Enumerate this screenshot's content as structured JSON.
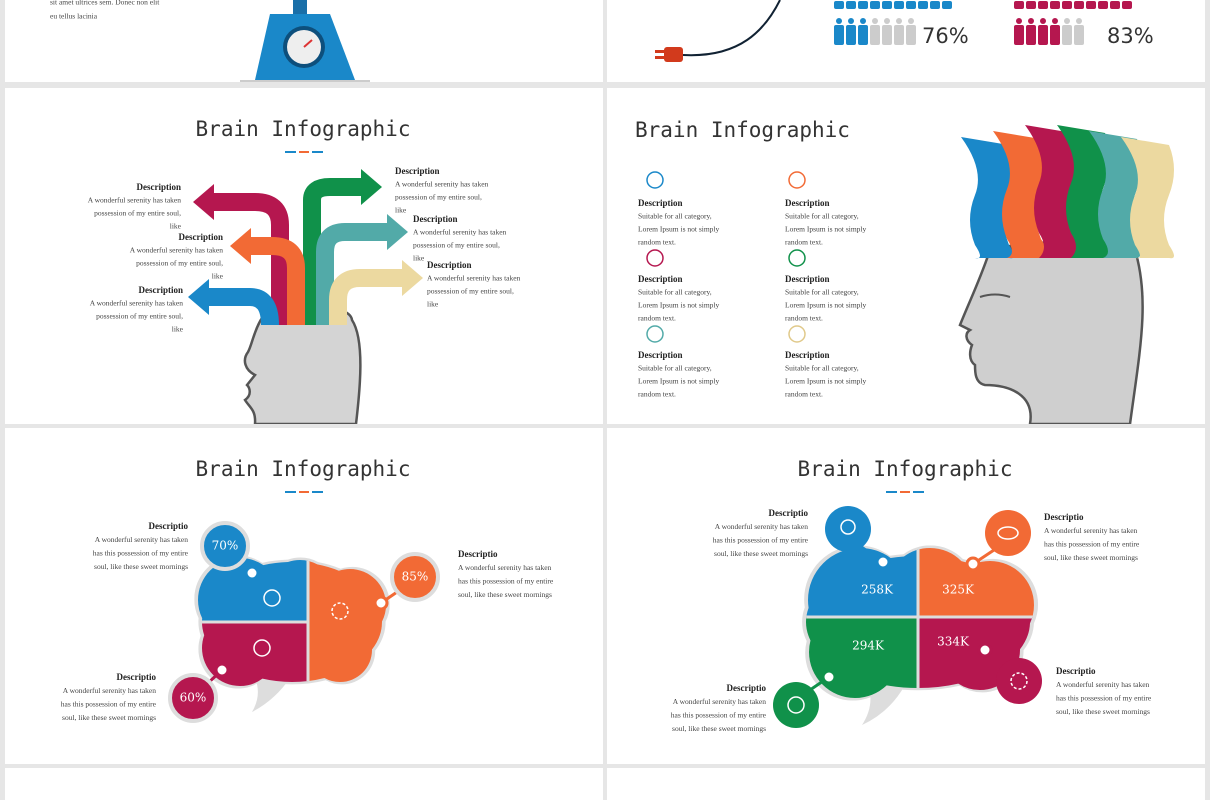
{
  "slides": [
    {
      "text": [
        "sit amet ultrices sem. Donec non elit",
        "eu tellus lacinia"
      ]
    },
    {
      "stats": [
        "76%",
        "83%"
      ]
    },
    {
      "title": "Brain Infographic",
      "items": [
        {
          "heading": "Description",
          "body": [
            "A wonderful serenity has taken",
            "possession of my entire soul,",
            "like"
          ]
        },
        {
          "heading": "Description",
          "body": [
            "A wonderful serenity has taken",
            "possession of my entire soul,",
            "like"
          ]
        },
        {
          "heading": "Description",
          "body": [
            "A wonderful serenity has taken",
            "possession of my entire soul,",
            "like"
          ]
        },
        {
          "heading": "Description",
          "body": [
            "A wonderful serenity has taken",
            "possession of my entire soul,",
            "like"
          ]
        },
        {
          "heading": "Description",
          "body": [
            "A wonderful serenity has taken",
            "possession of my entire soul,",
            "like"
          ]
        },
        {
          "heading": "Description",
          "body": [
            "A wonderful serenity has taken",
            "possession of my entire soul,",
            "like"
          ]
        }
      ]
    },
    {
      "title": "Brain Infographic",
      "items": [
        {
          "heading": "Description",
          "body": [
            "Suitable for all category,",
            "Lorem Ipsum is not simply",
            "random text."
          ]
        },
        {
          "heading": "Description",
          "body": [
            "Suitable for all category,",
            "Lorem Ipsum is not simply",
            "random text."
          ]
        },
        {
          "heading": "Description",
          "body": [
            "Suitable for all category,",
            "Lorem Ipsum is not simply",
            "random text."
          ]
        },
        {
          "heading": "Description",
          "body": [
            "Suitable for all category,",
            "Lorem Ipsum is not simply",
            "random text."
          ]
        },
        {
          "heading": "Description",
          "body": [
            "Suitable for all category,",
            "Lorem Ipsum is not simply",
            "random text."
          ]
        },
        {
          "heading": "Description",
          "body": [
            "Suitable for all category,",
            "Lorem Ipsum is not simply",
            "random text."
          ]
        }
      ]
    },
    {
      "title": "Brain Infographic",
      "items": [
        {
          "heading": "Descriptio",
          "body": [
            "A wonderful serenity has taken",
            "has this possession of my entire",
            "soul, like these sweet mornings"
          ]
        },
        {
          "heading": "Descriptio",
          "body": [
            "A wonderful serenity has taken",
            "has this possession of my entire",
            "soul, like these sweet mornings"
          ]
        },
        {
          "heading": "Descriptio",
          "body": [
            "A wonderful serenity has taken",
            "has this possession of my entire",
            "soul, like these sweet mornings"
          ]
        }
      ],
      "values": [
        "70%",
        "85%",
        "60%"
      ]
    },
    {
      "title": "Brain Infographic",
      "items": [
        {
          "heading": "Descriptio",
          "body": [
            "A wonderful serenity has taken",
            "has this possession of my entire",
            "soul, like these sweet mornings"
          ]
        },
        {
          "heading": "Descriptio",
          "body": [
            "A wonderful serenity has taken",
            "has this possession of my entire",
            "soul, like these sweet mornings"
          ]
        },
        {
          "heading": "Descriptio",
          "body": [
            "A wonderful serenity has taken",
            "has this possession of my entire",
            "soul, like these sweet mornings"
          ]
        },
        {
          "heading": "Descriptio",
          "body": [
            "A wonderful serenity has taken",
            "has this possession of my entire",
            "soul, like these sweet mornings"
          ]
        }
      ],
      "values": [
        "258K",
        "325K",
        "294K",
        "334K"
      ]
    }
  ]
}
